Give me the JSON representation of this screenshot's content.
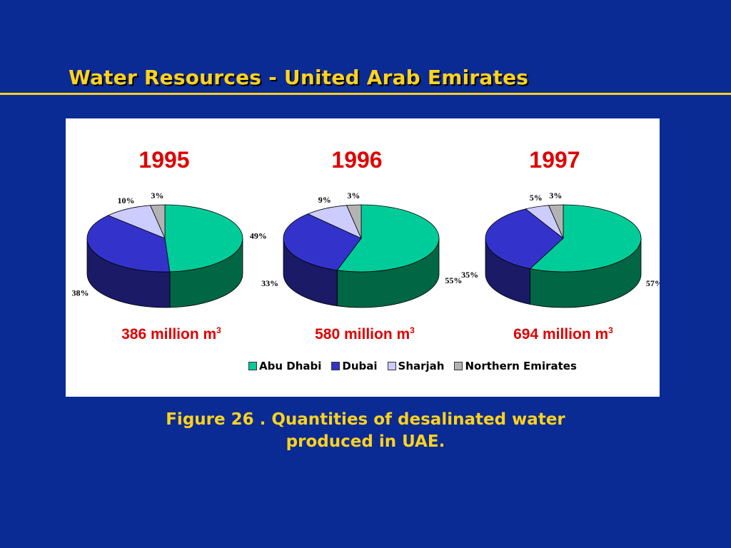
{
  "slide": {
    "title": "Water Resources - United Arab Emirates",
    "caption_line1": "Figure 26 . Quantities of desalinated water",
    "caption_line2": "produced in UAE."
  },
  "colors": {
    "background": "#0a2a94",
    "title": "#ffd21f",
    "year_text": "#e00000"
  },
  "chart_data": {
    "type": "pie",
    "series_names": [
      "Abu Dhabi",
      "Dubai",
      "Sharjah",
      "Northern Emirates"
    ],
    "series_colors": [
      "#00cc99",
      "#3333cc",
      "#ccccff",
      "#b3b3b3"
    ],
    "series_side_colors": [
      "#006644",
      "#1a1a66",
      "#66667f",
      "#5a5a5a"
    ],
    "legend_position": "bottom",
    "charts": [
      {
        "year": "1995",
        "total_value": 386,
        "total_label": "386 million m",
        "unit_superscript": "3",
        "values": [
          49,
          38,
          10,
          3
        ],
        "labels": [
          "49%",
          "38%",
          "10%",
          "3%"
        ]
      },
      {
        "year": "1996",
        "total_value": 580,
        "total_label": "580 million m",
        "unit_superscript": "3",
        "values": [
          55,
          33,
          9,
          3
        ],
        "labels": [
          "55%",
          "33%",
          "9%",
          "3%"
        ]
      },
      {
        "year": "1997",
        "total_value": 694,
        "total_label": "694 million m",
        "unit_superscript": "3",
        "values": [
          57,
          35,
          5,
          3
        ],
        "labels": [
          "57%",
          "35%",
          "5%",
          "3%"
        ]
      }
    ]
  }
}
